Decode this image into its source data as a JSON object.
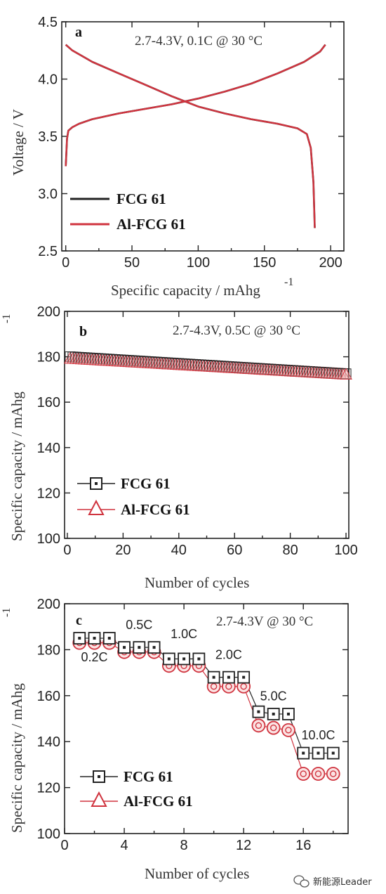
{
  "colors": {
    "fcg": "#222222",
    "alfcg": "#d0343f",
    "axis": "#222222"
  },
  "watermark": "新能源Leader",
  "chart_data": [
    {
      "type": "line",
      "panel_label": "a",
      "annotation": "2.7-4.3V, 0.1C @ 30 °C",
      "xlabel": "Specific capacity / mAhg",
      "xlabel_sup": "-1",
      "ylabel": "Voltage / V",
      "xlim": [
        -3,
        210
      ],
      "ylim": [
        2.5,
        4.5
      ],
      "xticks": [
        0,
        50,
        100,
        150,
        200
      ],
      "yticks": [
        2.5,
        3.0,
        3.5,
        4.0,
        4.5
      ],
      "ytick_labels": [
        "2.5",
        "3.0",
        "3.5",
        "4.0",
        "4.5"
      ],
      "legend": [
        {
          "name": "FCG 61"
        },
        {
          "name": "Al-FCG 61"
        }
      ],
      "series": [
        {
          "name": "FCG 61 charge",
          "x": [
            0,
            1,
            2,
            5,
            10,
            20,
            40,
            60,
            80,
            100,
            120,
            140,
            160,
            180,
            192,
            196
          ],
          "y": [
            3.24,
            3.48,
            3.55,
            3.58,
            3.61,
            3.65,
            3.7,
            3.74,
            3.78,
            3.83,
            3.89,
            3.96,
            4.05,
            4.15,
            4.24,
            4.3
          ]
        },
        {
          "name": "FCG 61 discharge",
          "x": [
            0,
            5,
            20,
            40,
            60,
            80,
            100,
            120,
            140,
            160,
            175,
            182,
            185,
            187,
            188
          ],
          "y": [
            4.3,
            4.25,
            4.15,
            4.05,
            3.95,
            3.85,
            3.76,
            3.7,
            3.65,
            3.61,
            3.57,
            3.52,
            3.4,
            3.1,
            2.7
          ]
        },
        {
          "name": "Al-FCG 61 charge",
          "x": [
            0,
            1,
            2,
            5,
            10,
            20,
            40,
            60,
            80,
            100,
            120,
            140,
            160,
            180,
            192,
            196
          ],
          "y": [
            3.24,
            3.48,
            3.55,
            3.58,
            3.61,
            3.65,
            3.7,
            3.74,
            3.78,
            3.83,
            3.89,
            3.96,
            4.05,
            4.15,
            4.24,
            4.3
          ]
        },
        {
          "name": "Al-FCG 61 discharge",
          "x": [
            0,
            5,
            20,
            40,
            60,
            80,
            100,
            120,
            140,
            160,
            175,
            182,
            185,
            187,
            188
          ],
          "y": [
            4.3,
            4.25,
            4.15,
            4.05,
            3.95,
            3.85,
            3.76,
            3.7,
            3.65,
            3.61,
            3.57,
            3.52,
            3.4,
            3.1,
            2.7
          ]
        }
      ]
    },
    {
      "type": "scatter",
      "panel_label": "b",
      "annotation": "2.7-4.3V, 0.5C @ 30 °C",
      "xlabel": "Number of cycles",
      "ylabel": "Specific capacity / mAhg",
      "ylabel_sup": "-1",
      "xlim": [
        -1,
        101
      ],
      "ylim": [
        100,
        200
      ],
      "xticks": [
        0,
        20,
        40,
        60,
        80,
        100
      ],
      "yticks": [
        100,
        120,
        140,
        160,
        180,
        200
      ],
      "legend": [
        {
          "name": "FCG 61"
        },
        {
          "name": "Al-FCG 61"
        }
      ],
      "fcg_start": 180.0,
      "fcg_end": 172.5,
      "alfcg_start": 179.0,
      "alfcg_end": 172.0,
      "n_cycles": 100
    },
    {
      "type": "scatter",
      "panel_label": "c",
      "annotation": "2.7-4.3V @ 30 °C",
      "xlabel": "Number of cycles",
      "ylabel": "Specific capacity / mAhg",
      "ylabel_sup": "-1",
      "xlim": [
        0,
        19
      ],
      "ylim": [
        100,
        200
      ],
      "xticks": [
        0,
        4,
        8,
        12,
        16
      ],
      "yticks": [
        100,
        120,
        140,
        160,
        180,
        200
      ],
      "legend": [
        {
          "name": "FCG 61"
        },
        {
          "name": "Al-FCG 61"
        }
      ],
      "rate_labels": [
        {
          "text": "0.2C",
          "x": 2,
          "y": 175
        },
        {
          "text": "0.5C",
          "x": 5,
          "y": 189
        },
        {
          "text": "1.0C",
          "x": 8,
          "y": 185
        },
        {
          "text": "2.0C",
          "x": 11,
          "y": 176
        },
        {
          "text": "5.0C",
          "x": 14,
          "y": 158
        },
        {
          "text": "10.0C",
          "x": 17,
          "y": 141
        }
      ],
      "series": [
        {
          "name": "FCG 61",
          "x": [
            1,
            2,
            3,
            4,
            5,
            6,
            7,
            8,
            9,
            10,
            11,
            12,
            13,
            14,
            15,
            16,
            17,
            18
          ],
          "y": [
            185,
            185,
            185,
            181,
            181,
            181,
            176,
            176,
            176,
            168,
            168,
            168,
            153,
            152,
            152,
            135,
            135,
            135
          ]
        },
        {
          "name": "Al-FCG 61",
          "x": [
            1,
            2,
            3,
            4,
            5,
            6,
            7,
            8,
            9,
            10,
            11,
            12,
            13,
            14,
            15,
            16,
            17,
            18
          ],
          "y": [
            183,
            183,
            183,
            179,
            179,
            179,
            173,
            173,
            173,
            164,
            164,
            164,
            147,
            146,
            145,
            126,
            126,
            126
          ]
        }
      ]
    }
  ]
}
